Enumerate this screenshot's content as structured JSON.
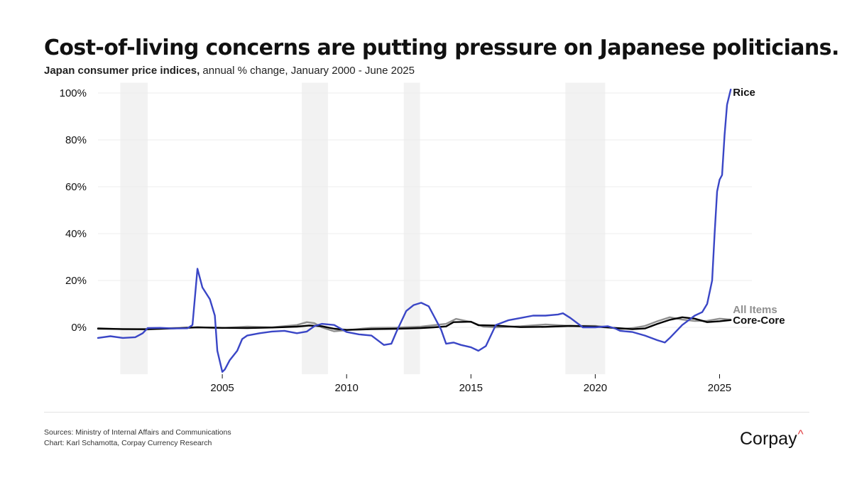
{
  "title": "Cost-of-living concerns are putting pressure on Japanese politicians.",
  "subtitle_bold": "Japan consumer price indices,",
  "subtitle_rest": " annual % change, January 2000 - June 2025",
  "footer": {
    "sources": "Sources: Ministry of Internal Affairs and Communications",
    "chart_credit": "Chart: Karl Schamotta, Corpay Currency Research",
    "brand": "Corpay",
    "brand_mark": "^",
    "brand_mark_color": "#e03a3e"
  },
  "chart_data": {
    "type": "line",
    "title": "Cost-of-living concerns are putting pressure on Japanese politicians.",
    "subtitle": "Japan consumer price indices, annual % change, January 2000 - June 2025",
    "xlabel": "",
    "ylabel": "",
    "xlim": [
      2000.0,
      2026.3
    ],
    "ylim": [
      -20,
      102
    ],
    "x_ticks": [
      2005,
      2010,
      2015,
      2020,
      2025
    ],
    "x_tick_labels": [
      "2005",
      "2010",
      "2015",
      "2020",
      "2025"
    ],
    "y_ticks": [
      0,
      20,
      40,
      60,
      80,
      100
    ],
    "y_tick_labels": [
      "0%",
      "20%",
      "40%",
      "60%",
      "80%",
      "100%"
    ],
    "grid": "horizontal",
    "legend": "direct labels at line ends",
    "shaded_periods": [
      [
        2000.9,
        2002.0
      ],
      [
        2008.2,
        2009.25
      ],
      [
        2012.3,
        2012.95
      ],
      [
        2018.8,
        2020.4
      ]
    ],
    "shade_color": "#f2f2f2",
    "series": [
      {
        "name": "All Items",
        "color": "#8f8f8f",
        "x": [
          2000.0,
          2001.0,
          2002.0,
          2003.0,
          2004.0,
          2005.0,
          2006.0,
          2007.0,
          2008.0,
          2008.4,
          2008.7,
          2009.0,
          2009.5,
          2010.0,
          2011.0,
          2012.0,
          2013.0,
          2013.5,
          2014.0,
          2014.4,
          2015.0,
          2015.5,
          2016.0,
          2017.0,
          2018.0,
          2019.0,
          2020.0,
          2020.5,
          2021.0,
          2021.5,
          2022.0,
          2022.5,
          2023.0,
          2023.5,
          2024.0,
          2024.5,
          2025.0,
          2025.45
        ],
        "values": [
          -0.7,
          -0.7,
          -0.9,
          -0.3,
          0.0,
          -0.3,
          0.3,
          0.0,
          1.0,
          2.2,
          1.8,
          0.0,
          -1.7,
          -1.2,
          -0.2,
          -0.1,
          0.3,
          0.9,
          1.5,
          3.6,
          2.3,
          0.3,
          0.0,
          0.5,
          1.2,
          0.6,
          0.6,
          0.1,
          -0.8,
          -0.3,
          0.6,
          2.6,
          4.3,
          3.3,
          2.7,
          2.8,
          3.7,
          3.3
        ]
      },
      {
        "name": "Core-Core",
        "color": "#000000",
        "x": [
          2000.0,
          2001.0,
          2002.0,
          2003.0,
          2004.0,
          2005.0,
          2006.0,
          2007.0,
          2008.0,
          2008.5,
          2009.0,
          2009.5,
          2010.0,
          2011.0,
          2012.0,
          2013.0,
          2013.5,
          2014.0,
          2014.3,
          2015.0,
          2015.3,
          2016.0,
          2016.5,
          2017.0,
          2018.0,
          2019.0,
          2020.0,
          2021.0,
          2021.5,
          2022.0,
          2022.5,
          2023.0,
          2023.5,
          2024.0,
          2024.5,
          2025.0,
          2025.45
        ],
        "values": [
          -0.5,
          -0.8,
          -0.8,
          -0.5,
          0.0,
          -0.2,
          -0.3,
          -0.1,
          0.3,
          0.8,
          0.5,
          -0.6,
          -1.1,
          -0.8,
          -0.6,
          -0.3,
          0.0,
          0.4,
          2.2,
          2.4,
          0.9,
          0.8,
          0.4,
          0.1,
          0.2,
          0.6,
          0.3,
          -0.4,
          -0.8,
          -0.5,
          1.5,
          3.2,
          4.3,
          3.7,
          2.2,
          2.6,
          3.1
        ]
      },
      {
        "name": "Rice",
        "color": "#3a46c6",
        "x": [
          2000.0,
          2000.5,
          2001.0,
          2001.5,
          2001.8,
          2002.0,
          2002.5,
          2003.0,
          2003.6,
          2003.8,
          2004.0,
          2004.2,
          2004.5,
          2004.7,
          2004.8,
          2005.0,
          2005.1,
          2005.3,
          2005.6,
          2005.8,
          2006.0,
          2006.5,
          2007.0,
          2007.5,
          2008.0,
          2008.4,
          2008.7,
          2009.0,
          2009.5,
          2010.0,
          2010.5,
          2011.0,
          2011.5,
          2011.8,
          2012.0,
          2012.4,
          2012.7,
          2013.0,
          2013.3,
          2013.5,
          2013.8,
          2014.0,
          2014.3,
          2014.6,
          2015.0,
          2015.3,
          2015.6,
          2016.0,
          2016.5,
          2017.0,
          2017.5,
          2018.0,
          2018.5,
          2018.7,
          2019.0,
          2019.5,
          2020.0,
          2020.5,
          2020.8,
          2021.0,
          2021.5,
          2022.0,
          2022.5,
          2022.8,
          2023.0,
          2023.5,
          2024.0,
          2024.3,
          2024.5,
          2024.7,
          2024.8,
          2024.9,
          2025.0,
          2025.1,
          2025.2,
          2025.3,
          2025.45
        ],
        "values": [
          -4.5,
          -3.8,
          -4.5,
          -4.2,
          -2.5,
          -0.3,
          -0.2,
          -0.5,
          -0.4,
          1.0,
          25.0,
          17.0,
          12.0,
          5.0,
          -10.0,
          -19.0,
          -18.0,
          -14.0,
          -10.0,
          -5.0,
          -3.5,
          -2.5,
          -1.8,
          -1.5,
          -2.5,
          -1.8,
          0.5,
          1.5,
          1.0,
          -2.0,
          -3.0,
          -3.5,
          -7.5,
          -7.0,
          -2.0,
          7.0,
          9.5,
          10.5,
          9.0,
          5.0,
          -1.0,
          -7.0,
          -6.5,
          -7.5,
          -8.5,
          -10.0,
          -8.0,
          1.0,
          3.0,
          4.0,
          5.0,
          5.0,
          5.5,
          6.0,
          4.0,
          0.0,
          0.0,
          0.5,
          -0.5,
          -1.5,
          -2.0,
          -3.5,
          -5.5,
          -6.5,
          -4.5,
          1.0,
          5.0,
          6.5,
          10.0,
          20.0,
          40.0,
          58.0,
          63.0,
          65.0,
          82.0,
          95.0,
          101.5
        ]
      }
    ]
  }
}
